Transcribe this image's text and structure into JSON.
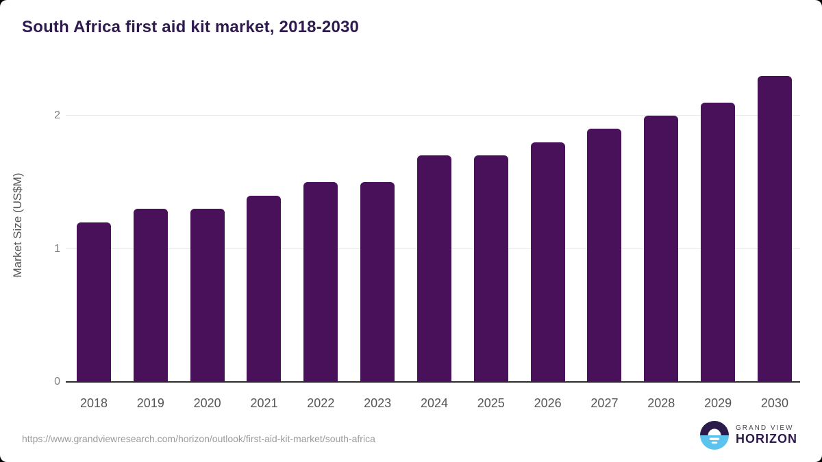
{
  "title": "South Africa first aid kit market, 2018-2030",
  "chart_data": {
    "type": "bar",
    "categories": [
      "2018",
      "2019",
      "2020",
      "2021",
      "2022",
      "2023",
      "2024",
      "2025",
      "2026",
      "2027",
      "2028",
      "2029",
      "2030"
    ],
    "values": [
      1.2,
      1.3,
      1.3,
      1.4,
      1.5,
      1.5,
      1.7,
      1.7,
      1.8,
      1.9,
      2.0,
      2.1,
      2.3
    ],
    "title": "South Africa first aid kit market, 2018-2030",
    "xlabel": "",
    "ylabel": "Market Size (US$M)",
    "ylim": [
      0,
      2.36
    ],
    "yticks": [
      0,
      1,
      2
    ],
    "grid": "horizontal",
    "legend": "none",
    "bar_color": "#48115a"
  },
  "colors": {
    "title": "#2e1a4d",
    "bar": "#48115a",
    "gridline": "#e9e9e9",
    "axis_line": "#2b2b2b",
    "tick_label": "#808080",
    "axis_label": "#555555",
    "logo_blue": "#5cc3ef",
    "logo_purple": "#2c1a4a"
  },
  "footer": {
    "source_url": "https://www.grandviewresearch.com/horizon/outlook/first-aid-kit-market/south-africa",
    "logo": {
      "line1": "GRAND VIEW",
      "line2": "HORIZON"
    }
  }
}
